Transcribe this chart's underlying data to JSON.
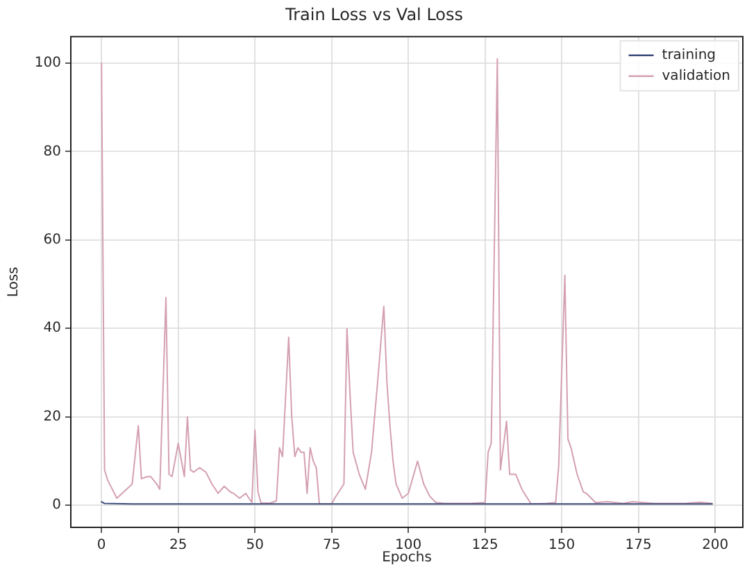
{
  "chart_data": {
    "type": "line",
    "title": "Train Loss vs Val Loss",
    "xlabel": "Epochs",
    "ylabel": "Loss",
    "series": [
      {
        "name": "training",
        "color": "#3a4a7a",
        "x": [
          0,
          1,
          10,
          25,
          50,
          75,
          100,
          125,
          150,
          175,
          199
        ],
        "values": [
          0.8,
          0.4,
          0.3,
          0.3,
          0.3,
          0.3,
          0.3,
          0.3,
          0.3,
          0.3,
          0.3
        ]
      },
      {
        "name": "validation",
        "color": "#d4a0b0",
        "x": [
          0,
          1,
          2,
          5,
          8,
          10,
          12,
          13,
          15,
          16,
          18,
          19,
          21,
          22,
          23,
          25,
          27,
          28,
          29,
          30,
          32,
          34,
          36,
          38,
          40,
          42,
          43,
          45,
          47,
          49,
          50,
          51,
          52,
          55,
          57,
          58,
          59,
          61,
          62,
          63,
          64,
          65,
          66,
          67,
          68,
          69,
          70,
          71,
          75,
          76,
          79,
          80,
          81,
          82,
          84,
          86,
          88,
          90,
          92,
          93,
          94,
          95,
          96,
          98,
          100,
          103,
          105,
          107,
          109,
          112,
          120,
          125,
          126,
          127,
          129,
          130,
          132,
          133,
          135,
          137,
          140,
          145,
          148,
          149,
          151,
          152,
          153,
          155,
          157,
          158,
          161,
          165,
          170,
          173,
          180,
          190,
          195,
          199
        ],
        "values": [
          100,
          8,
          5.7,
          1.6,
          3.5,
          4.8,
          18,
          6,
          6.5,
          6.5,
          4.8,
          3.6,
          47,
          7,
          6.5,
          14,
          6.5,
          20,
          8,
          7.5,
          8.5,
          7.5,
          4.8,
          2.7,
          4.3,
          3,
          2.7,
          1.6,
          2.7,
          0.6,
          17,
          3,
          0.5,
          0.5,
          1,
          13,
          11,
          38,
          20,
          11,
          13,
          12,
          12,
          2.7,
          13,
          10,
          8.5,
          0.3,
          0.3,
          1.6,
          4.8,
          40,
          25,
          12,
          7,
          3.6,
          12,
          28,
          45,
          28,
          18,
          10,
          4.8,
          1.6,
          2.7,
          10,
          4.8,
          2,
          0.6,
          0.4,
          0.4,
          0.6,
          12,
          14,
          101,
          8,
          19,
          7,
          7,
          3.6,
          0.3,
          0.4,
          0.6,
          9,
          52,
          15,
          13,
          7,
          3,
          2.7,
          0.6,
          0.8,
          0.4,
          0.8,
          0.4,
          0.4,
          0.7,
          0.4
        ]
      }
    ],
    "xlim": [
      -10,
      209
    ],
    "xticks": [
      0,
      25,
      50,
      75,
      100,
      125,
      150,
      175,
      200
    ],
    "ylim": [
      -5,
      106
    ],
    "yticks": [
      0,
      20,
      40,
      60,
      80,
      100
    ],
    "grid": true,
    "legend": "top right"
  }
}
